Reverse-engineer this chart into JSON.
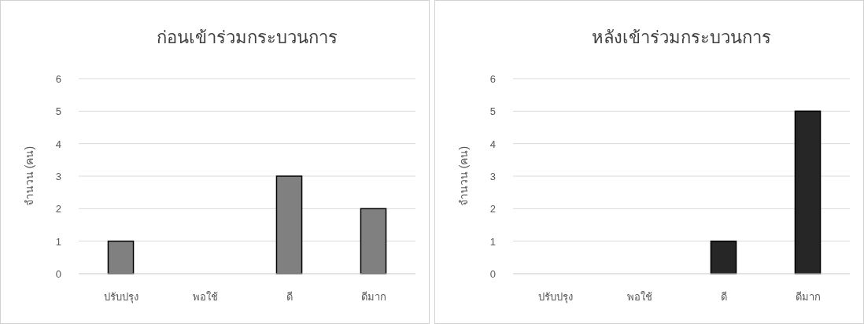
{
  "chart_data": [
    {
      "type": "bar",
      "title": "ก่อนเข้าร่วมกระบวนการ",
      "ylabel": "จำนวน (คน)",
      "categories": [
        "ปรับปรุง",
        "พอใช้",
        "ดี",
        "ดีมาก"
      ],
      "values": [
        1,
        0,
        3,
        2
      ],
      "color": "#808080",
      "ylim": [
        0,
        6
      ],
      "yticks": [
        0,
        1,
        2,
        3,
        4,
        5,
        6
      ],
      "grid": "y"
    },
    {
      "type": "bar",
      "title": "หลังเข้าร่วมกระบวนการ",
      "ylabel": "จำนวน (คน)",
      "categories": [
        "ปรับปรุง",
        "พอใช้",
        "ดี",
        "ดีมาก"
      ],
      "values": [
        0,
        0,
        1,
        5
      ],
      "color": "#262626",
      "ylim": [
        0,
        6
      ],
      "yticks": [
        0,
        1,
        2,
        3,
        4,
        5,
        6
      ],
      "grid": "y"
    }
  ]
}
